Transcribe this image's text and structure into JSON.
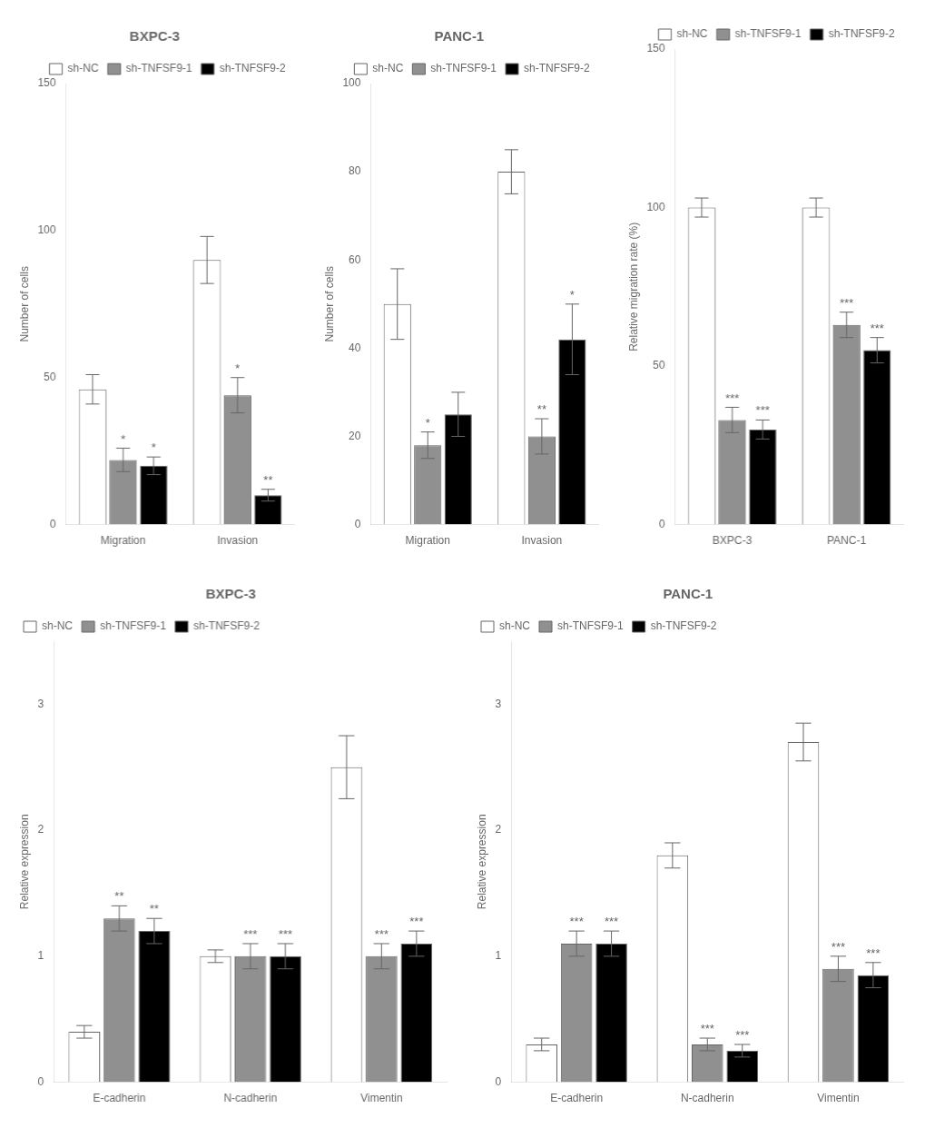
{
  "chart_data": [
    {
      "type": "bar",
      "title": "BXPC-3",
      "y_label": "Number of cells",
      "categories": [
        "Migration",
        "Invasion"
      ],
      "series": [
        {
          "name": "sh-NC",
          "color": "#ffffff",
          "values": [
            46,
            90
          ],
          "errors": [
            5,
            8
          ]
        },
        {
          "name": "sh-TNFSF9-1",
          "color": "#909090",
          "values": [
            22,
            44
          ],
          "errors": [
            4,
            6
          ]
        },
        {
          "name": "sh-TNFSF9-2",
          "color": "#000000",
          "values": [
            20,
            10
          ],
          "errors": [
            3,
            2
          ]
        }
      ],
      "annotations": [
        {
          "category": "Migration",
          "series": "sh-TNFSF9-1",
          "text": "*"
        },
        {
          "category": "Migration",
          "series": "sh-TNFSF9-2",
          "text": "*"
        },
        {
          "category": "Invasion",
          "series": "sh-TNFSF9-1",
          "text": "*"
        },
        {
          "category": "Invasion",
          "series": "sh-TNFSF9-2",
          "text": "**"
        }
      ],
      "ylim": [
        0,
        150
      ],
      "yticks": [
        0,
        50,
        100,
        150
      ],
      "grid": false,
      "legend": "upper right"
    },
    {
      "type": "bar",
      "title": "PANC-1",
      "y_label": "Number of cells",
      "categories": [
        "Migration",
        "Invasion"
      ],
      "series": [
        {
          "name": "sh-NC",
          "color": "#ffffff",
          "values": [
            50,
            80
          ],
          "errors": [
            8,
            5
          ]
        },
        {
          "name": "sh-TNFSF9-1",
          "color": "#909090",
          "values": [
            18,
            20
          ],
          "errors": [
            3,
            4
          ]
        },
        {
          "name": "sh-TNFSF9-2",
          "color": "#000000",
          "values": [
            25,
            42
          ],
          "errors": [
            5,
            8
          ]
        }
      ],
      "annotations": [
        {
          "category": "Migration",
          "series": "sh-TNFSF9-1",
          "text": "*"
        },
        {
          "category": "Invasion",
          "series": "sh-TNFSF9-1",
          "text": "**"
        },
        {
          "category": "Invasion",
          "series": "sh-TNFSF9-2",
          "text": "*"
        }
      ],
      "ylim": [
        0,
        100
      ],
      "yticks": [
        0,
        20,
        40,
        60,
        80,
        100
      ],
      "grid": false,
      "legend": "upper right"
    },
    {
      "type": "bar",
      "y_label": "Relative migration rate (%)",
      "categories": [
        "BXPC-3",
        "PANC-1"
      ],
      "series": [
        {
          "name": "sh-NC",
          "color": "#ffffff",
          "values": [
            100,
            100
          ],
          "errors": [
            3,
            3
          ]
        },
        {
          "name": "sh-TNFSF9-1",
          "color": "#909090",
          "values": [
            33,
            63
          ],
          "errors": [
            4,
            4
          ]
        },
        {
          "name": "sh-TNFSF9-2",
          "color": "#000000",
          "values": [
            30,
            55
          ],
          "errors": [
            3,
            4
          ]
        }
      ],
      "annotations": [
        {
          "category": "BXPC-3",
          "series": "sh-TNFSF9-1",
          "text": "***"
        },
        {
          "category": "BXPC-3",
          "series": "sh-TNFSF9-2",
          "text": "***"
        },
        {
          "category": "PANC-1",
          "series": "sh-TNFSF9-1",
          "text": "***"
        },
        {
          "category": "PANC-1",
          "series": "sh-TNFSF9-2",
          "text": "***"
        }
      ],
      "ylim": [
        0,
        150
      ],
      "yticks": [
        0,
        50,
        100,
        150
      ],
      "grid": false,
      "legend": "upper right"
    },
    {
      "type": "bar",
      "title": "BXPC-3",
      "y_label": "Relative expression",
      "categories": [
        "E-cadherin",
        "N-cadherin",
        "Vimentin"
      ],
      "series": [
        {
          "name": "sh-NC",
          "color": "#ffffff",
          "values": [
            0.4,
            1.0,
            2.5
          ],
          "errors": [
            0.05,
            0.05,
            0.25
          ]
        },
        {
          "name": "sh-TNFSF9-1",
          "color": "#909090",
          "values": [
            1.3,
            1.0,
            1.0
          ],
          "errors": [
            0.1,
            0.1,
            0.1
          ]
        },
        {
          "name": "sh-TNFSF9-2",
          "color": "#000000",
          "values": [
            1.2,
            1.0,
            1.1
          ],
          "errors": [
            0.1,
            0.1,
            0.1
          ]
        }
      ],
      "annotations": [
        {
          "category": "E-cadherin",
          "series": "sh-TNFSF9-1",
          "text": "**"
        },
        {
          "category": "E-cadherin",
          "series": "sh-TNFSF9-2",
          "text": "**"
        },
        {
          "category": "N-cadherin",
          "series": "sh-TNFSF9-1",
          "text": "***"
        },
        {
          "category": "N-cadherin",
          "series": "sh-TNFSF9-2",
          "text": "***"
        },
        {
          "category": "Vimentin",
          "series": "sh-TNFSF9-1",
          "text": "***"
        },
        {
          "category": "Vimentin",
          "series": "sh-TNFSF9-2",
          "text": "***"
        }
      ],
      "ylim": [
        0,
        3.5
      ],
      "yticks": [
        0,
        1,
        2,
        3
      ],
      "grid": false,
      "legend": "upper left"
    },
    {
      "type": "bar",
      "title": "PANC-1",
      "y_label": "Relative expression",
      "categories": [
        "E-cadherin",
        "N-cadherin",
        "Vimentin"
      ],
      "series": [
        {
          "name": "sh-NC",
          "color": "#ffffff",
          "values": [
            0.3,
            1.8,
            2.7
          ],
          "errors": [
            0.05,
            0.1,
            0.15
          ]
        },
        {
          "name": "sh-TNFSF9-1",
          "color": "#909090",
          "values": [
            1.1,
            0.3,
            0.9
          ],
          "errors": [
            0.1,
            0.05,
            0.1
          ]
        },
        {
          "name": "sh-TNFSF9-2",
          "color": "#000000",
          "values": [
            1.1,
            0.25,
            0.85
          ],
          "errors": [
            0.1,
            0.05,
            0.1
          ]
        }
      ],
      "annotations": [
        {
          "category": "E-cadherin",
          "series": "sh-TNFSF9-1",
          "text": "***"
        },
        {
          "category": "E-cadherin",
          "series": "sh-TNFSF9-2",
          "text": "***"
        },
        {
          "category": "N-cadherin",
          "series": "sh-TNFSF9-1",
          "text": "***"
        },
        {
          "category": "N-cadherin",
          "series": "sh-TNFSF9-2",
          "text": "***"
        },
        {
          "category": "Vimentin",
          "series": "sh-TNFSF9-1",
          "text": "***"
        },
        {
          "category": "Vimentin",
          "series": "sh-TNFSF9-2",
          "text": "***"
        }
      ],
      "ylim": [
        0,
        3.5
      ],
      "yticks": [
        0,
        1,
        2,
        3
      ],
      "grid": false,
      "legend": "upper left"
    }
  ]
}
